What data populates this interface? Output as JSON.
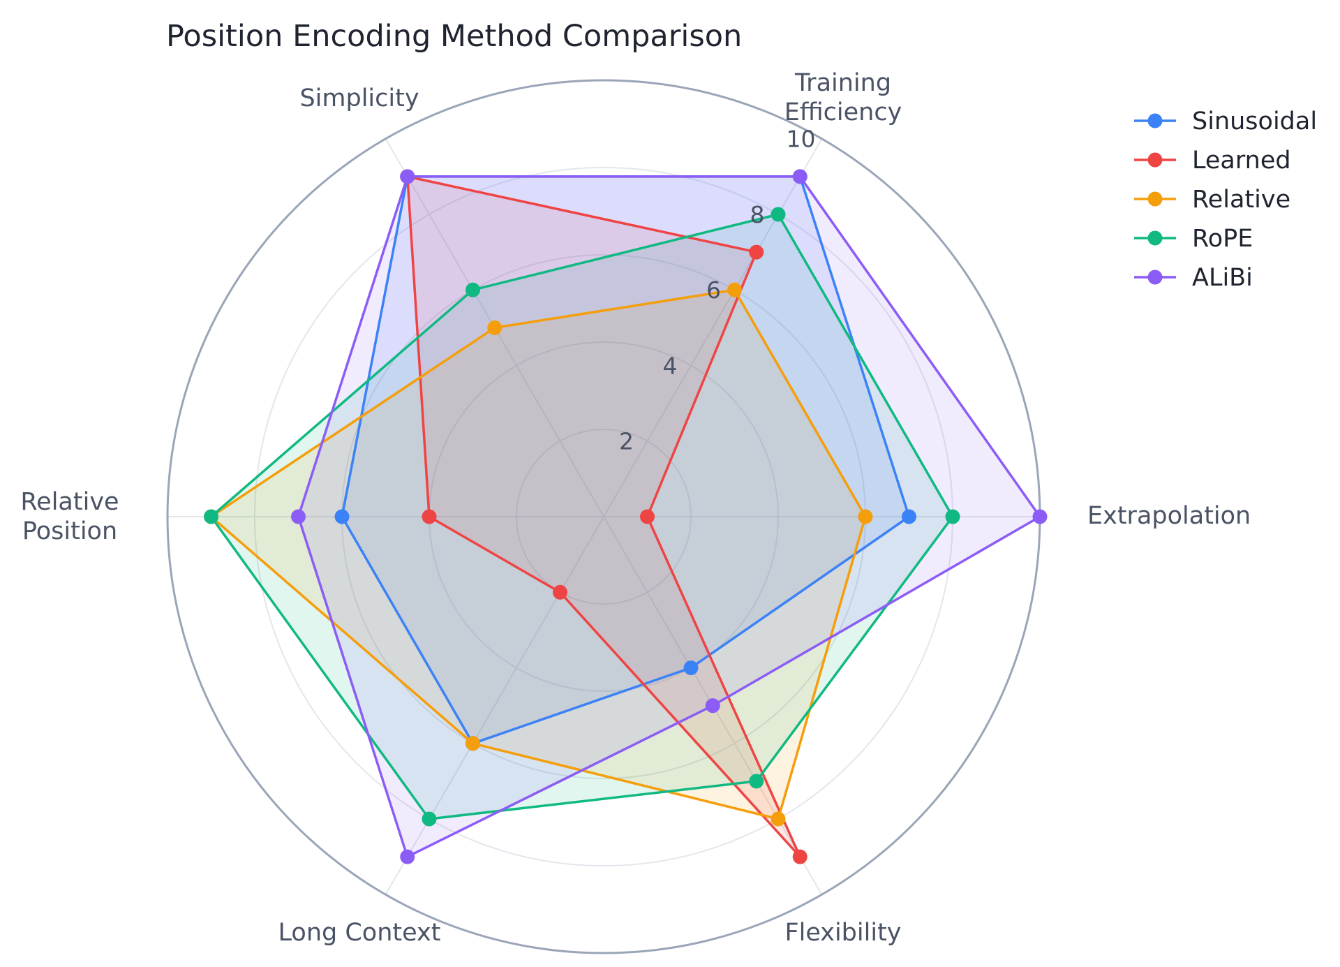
{
  "chart_data": {
    "type": "radar",
    "title": "Position Encoding Method Comparison",
    "axes": [
      {
        "label": [
          "Extrapolation"
        ]
      },
      {
        "label": [
          "Training",
          "Efficiency"
        ]
      },
      {
        "label": [
          "Simplicity"
        ]
      },
      {
        "label": [
          "Relative",
          "Position"
        ]
      },
      {
        "label": [
          "Long Context"
        ]
      },
      {
        "label": [
          "Flexibility"
        ]
      }
    ],
    "categories": [
      "Extrapolation",
      "Training Efficiency",
      "Simplicity",
      "Relative Position",
      "Long Context",
      "Flexibility"
    ],
    "rrange": [
      0,
      10
    ],
    "ticks": [
      "2",
      "4",
      "6",
      "8",
      "10"
    ],
    "tick_values": [
      2,
      4,
      6,
      8,
      10
    ],
    "grid": true,
    "legend_position": "top-right",
    "series": [
      {
        "name": "Sinusoidal",
        "color": "#3b82f6",
        "values": [
          7,
          9,
          9,
          6,
          6,
          4
        ]
      },
      {
        "name": "Learned",
        "color": "#ef4444",
        "values": [
          1,
          7,
          9,
          4,
          2,
          9
        ]
      },
      {
        "name": "Relative",
        "color": "#f59e0b",
        "values": [
          6,
          6,
          5,
          9,
          6,
          8
        ]
      },
      {
        "name": "RoPE",
        "color": "#10b981",
        "values": [
          8,
          8,
          6,
          9,
          8,
          7
        ]
      },
      {
        "name": "ALiBi",
        "color": "#8b5cf6",
        "values": [
          10,
          9,
          9,
          7,
          9,
          5
        ]
      }
    ]
  }
}
